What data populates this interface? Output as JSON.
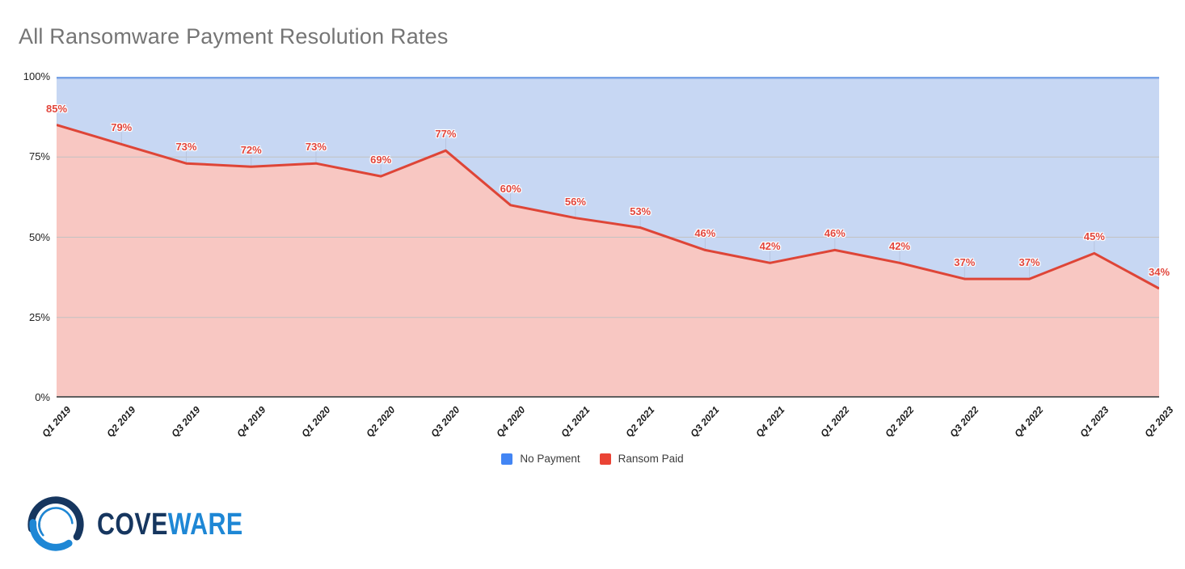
{
  "title": "All Ransomware Payment Resolution Rates",
  "chart_data": {
    "type": "area",
    "stacked": true,
    "title": "All Ransomware Payment Resolution Rates",
    "categories": [
      "Q1 2019",
      "Q2 2019",
      "Q3 2019",
      "Q4 2019",
      "Q1 2020",
      "Q2 2020",
      "Q3 2020",
      "Q4 2020",
      "Q1 2021",
      "Q2 2021",
      "Q3 2021",
      "Q4 2021",
      "Q1 2022",
      "Q2 2022",
      "Q3 2022",
      "Q4 2022",
      "Q1 2023",
      "Q2 2023"
    ],
    "series": [
      {
        "name": "No Payment",
        "color": "#4285f4",
        "values": [
          15,
          21,
          27,
          28,
          27,
          31,
          23,
          40,
          44,
          47,
          54,
          58,
          54,
          58,
          63,
          63,
          55,
          66
        ]
      },
      {
        "name": "Ransom Paid",
        "color": "#ea4335",
        "values": [
          85,
          79,
          73,
          72,
          73,
          69,
          77,
          60,
          56,
          53,
          46,
          42,
          46,
          42,
          37,
          37,
          45,
          34
        ]
      }
    ],
    "data_labels": [
      "85%",
      "79%",
      "73%",
      "72%",
      "73%",
      "69%",
      "77%",
      "60%",
      "56%",
      "53%",
      "46%",
      "42%",
      "46%",
      "42%",
      "37%",
      "37%",
      "45%",
      "34%"
    ],
    "y_ticks": [
      "100%",
      "75%",
      "50%",
      "25%",
      "0%"
    ],
    "y_tick_values": [
      100,
      75,
      50,
      25,
      0
    ],
    "ylim": [
      0,
      100
    ],
    "grid": true,
    "legend_position": "bottom"
  },
  "colors": {
    "title": "#757575",
    "no_payment_fill": "#c7d7f3",
    "no_payment_line": "#78a2e5",
    "ransom_fill": "#f8c7c2",
    "ransom_line": "#de4537",
    "data_label": "#e2453b",
    "gridline": "#c2c2c2",
    "point_tick": "#b9c5de",
    "axis_line": "#5f5f5f"
  },
  "legend": {
    "items": [
      {
        "label": "No Payment",
        "color": "#4285f4"
      },
      {
        "label": "Ransom Paid",
        "color": "#ea4335"
      }
    ]
  },
  "logo": {
    "part1": "COVE",
    "part2": "WARE"
  }
}
